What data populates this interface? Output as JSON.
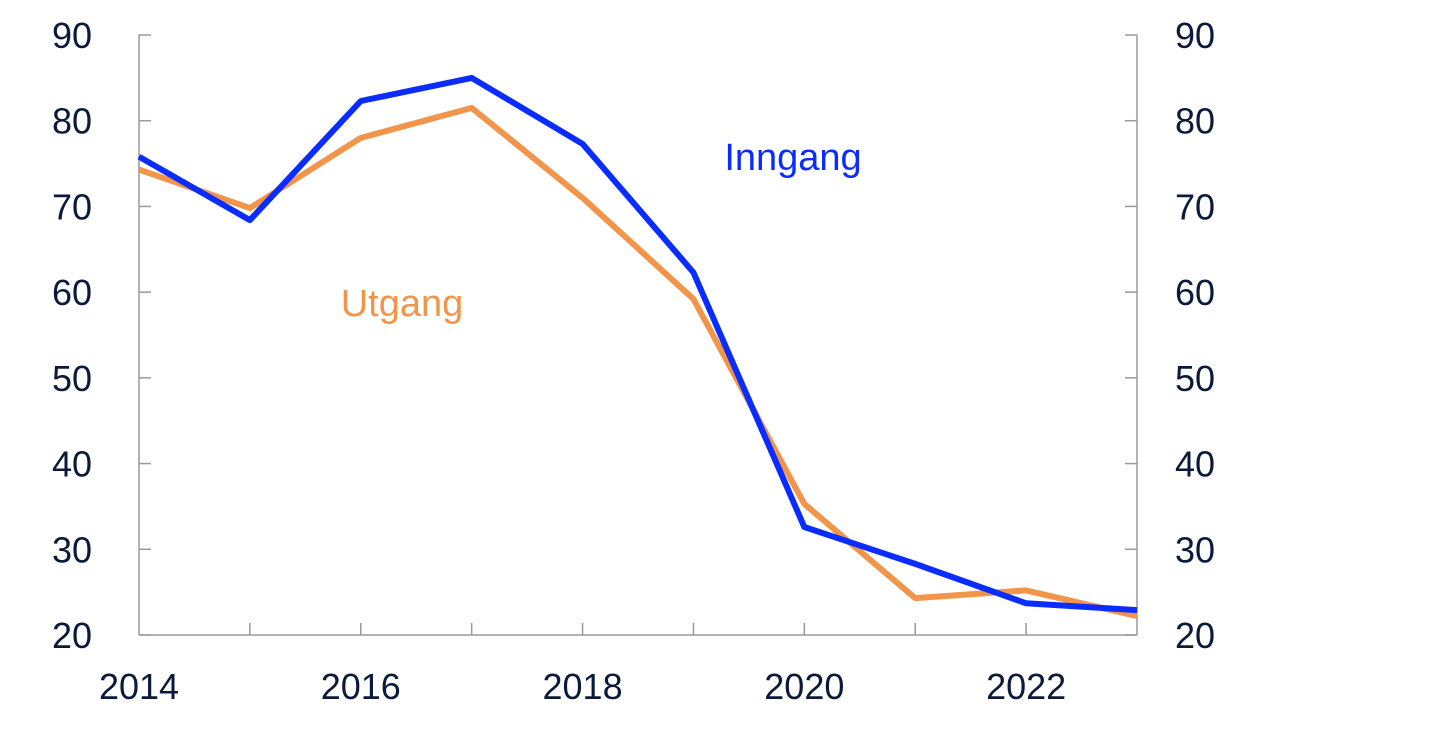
{
  "chart_data": {
    "type": "line",
    "title": "",
    "xlabel": "",
    "ylabel": "",
    "x": [
      2014,
      2015,
      2016,
      2017,
      2018,
      2019,
      2020,
      2021,
      2022,
      2023
    ],
    "xlim": [
      2014,
      2023
    ],
    "ylim": [
      20,
      90
    ],
    "x_tick_labels": [
      "2014",
      "2016",
      "2018",
      "2020",
      "2022"
    ],
    "y_tick_labels": [
      "90",
      "80",
      "70",
      "60",
      "50",
      "40",
      "30",
      "20"
    ],
    "grid": false,
    "secondary_y_axis": true,
    "series": [
      {
        "name": "Inngang",
        "color": "#0a2cff",
        "values": [
          75.8,
          68.4,
          82.3,
          85.0,
          77.3,
          62.3,
          32.6,
          28.3,
          23.7,
          22.9
        ]
      },
      {
        "name": "Utgang",
        "color": "#f0954a",
        "values": [
          74.3,
          69.8,
          78.0,
          81.5,
          71.0,
          59.2,
          35.3,
          24.3,
          25.2,
          22.2
        ]
      }
    ]
  }
}
